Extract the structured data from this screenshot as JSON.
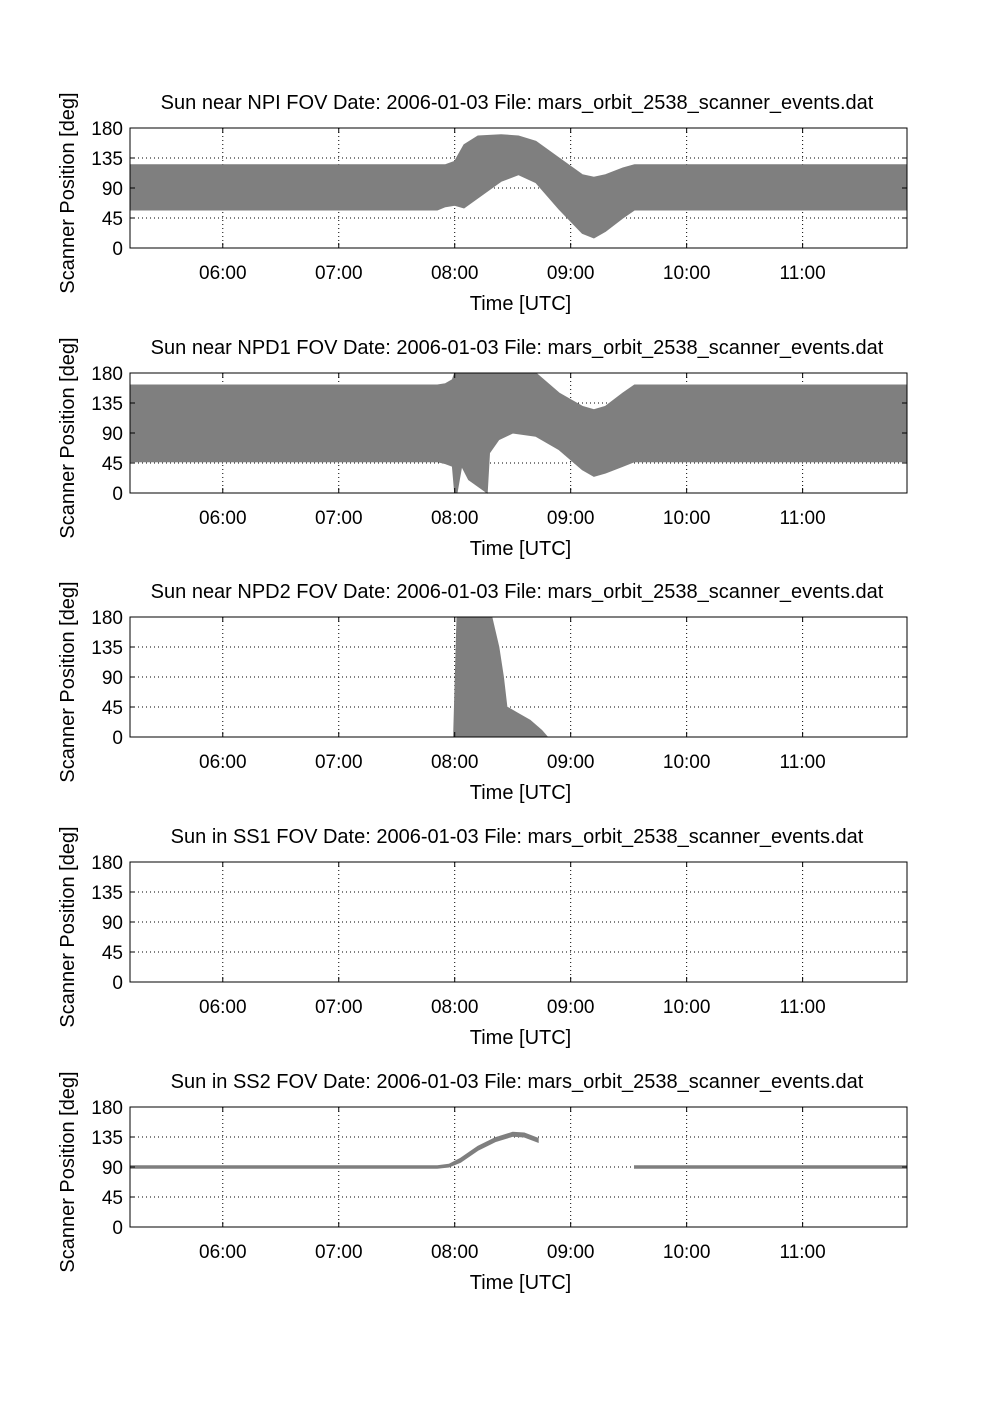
{
  "page": {
    "background": "#ffffff",
    "fill_color": "#7f7f7f",
    "axis_color": "#000000",
    "grid_color": "#000000"
  },
  "chart_data": [
    {
      "type": "area",
      "title": "Sun near NPI FOV    Date: 2006-01-03    File: mars_orbit_2538_scanner_events.dat",
      "xlabel": "Time [UTC]",
      "ylabel": "Scanner Position [deg]",
      "x_unit": "hours UTC",
      "xlim": [
        5.2,
        11.9
      ],
      "ylim": [
        0,
        180
      ],
      "xticks": [
        6,
        7,
        8,
        9,
        10,
        11
      ],
      "xtick_labels": [
        "06:00",
        "07:00",
        "08:00",
        "09:00",
        "10:00",
        "11:00"
      ],
      "yticks": [
        0,
        45,
        90,
        135,
        180
      ],
      "ytick_labels": [
        "0",
        "45",
        "90",
        "135",
        "180"
      ],
      "grid": true,
      "series": [
        {
          "x": [
            5.2,
            7.85,
            7.92,
            8.0,
            8.08,
            8.2,
            8.4,
            8.55,
            8.7,
            8.9,
            9.1,
            9.2,
            9.3,
            9.45,
            9.55,
            11.9
          ],
          "lower": [
            57,
            57,
            62,
            64,
            60,
            75,
            100,
            110,
            98,
            58,
            22,
            15,
            25,
            45,
            57,
            57
          ],
          "upper": [
            125,
            125,
            125,
            130,
            155,
            168,
            170,
            168,
            160,
            135,
            110,
            106,
            110,
            120,
            125,
            125
          ]
        }
      ]
    },
    {
      "type": "area",
      "title": "Sun near NPD1 FOV    Date: 2006-01-03    File: mars_orbit_2538_scanner_events.dat",
      "xlabel": "Time [UTC]",
      "ylabel": "Scanner Position [deg]",
      "x_unit": "hours UTC",
      "xlim": [
        5.2,
        11.9
      ],
      "ylim": [
        0,
        180
      ],
      "xticks": [
        6,
        7,
        8,
        9,
        10,
        11
      ],
      "xtick_labels": [
        "06:00",
        "07:00",
        "08:00",
        "09:00",
        "10:00",
        "11:00"
      ],
      "yticks": [
        0,
        45,
        90,
        135,
        180
      ],
      "ytick_labels": [
        "0",
        "45",
        "90",
        "135",
        "180"
      ],
      "grid": true,
      "series": [
        {
          "x": [
            5.2,
            7.85,
            7.92,
            7.98,
            8.0,
            8.02,
            8.06,
            8.12,
            8.28,
            8.3,
            8.38,
            8.5,
            8.7,
            8.9,
            9.1,
            9.2,
            9.3,
            9.45,
            9.55,
            11.9
          ],
          "lower": [
            47,
            47,
            44,
            40,
            0,
            0,
            40,
            20,
            0,
            60,
            80,
            90,
            85,
            65,
            35,
            25,
            30,
            40,
            47,
            47
          ],
          "upper": [
            162,
            162,
            164,
            170,
            180,
            180,
            180,
            180,
            180,
            180,
            180,
            180,
            180,
            150,
            130,
            125,
            130,
            150,
            162,
            162
          ]
        }
      ]
    },
    {
      "type": "area",
      "title": "Sun near NPD2 FOV    Date: 2006-01-03    File: mars_orbit_2538_scanner_events.dat",
      "xlabel": "Time [UTC]",
      "ylabel": "Scanner Position [deg]",
      "x_unit": "hours UTC",
      "xlim": [
        5.2,
        11.9
      ],
      "ylim": [
        0,
        180
      ],
      "xticks": [
        6,
        7,
        8,
        9,
        10,
        11
      ],
      "xtick_labels": [
        "06:00",
        "07:00",
        "08:00",
        "09:00",
        "10:00",
        "11:00"
      ],
      "yticks": [
        0,
        45,
        90,
        135,
        180
      ],
      "ytick_labels": [
        "0",
        "45",
        "90",
        "135",
        "180"
      ],
      "grid": true,
      "series": [
        {
          "x": [
            7.99,
            8.02,
            8.08,
            8.32,
            8.38,
            8.42,
            8.45,
            8.55,
            8.65,
            8.75,
            8.8
          ],
          "lower": [
            0,
            0,
            0,
            0,
            0,
            0,
            0,
            0,
            0,
            0,
            0
          ],
          "upper": [
            0,
            180,
            180,
            180,
            135,
            90,
            45,
            35,
            25,
            10,
            0
          ]
        }
      ]
    },
    {
      "type": "area",
      "title": "Sun in SS1 FOV    Date: 2006-01-03    File: mars_orbit_2538_scanner_events.dat",
      "xlabel": "Time [UTC]",
      "ylabel": "Scanner Position [deg]",
      "x_unit": "hours UTC",
      "xlim": [
        5.2,
        11.9
      ],
      "ylim": [
        0,
        180
      ],
      "xticks": [
        6,
        7,
        8,
        9,
        10,
        11
      ],
      "xtick_labels": [
        "06:00",
        "07:00",
        "08:00",
        "09:00",
        "10:00",
        "11:00"
      ],
      "yticks": [
        0,
        45,
        90,
        135,
        180
      ],
      "ytick_labels": [
        "0",
        "45",
        "90",
        "135",
        "180"
      ],
      "grid": true,
      "series": []
    },
    {
      "type": "area",
      "title": "Sun in SS2 FOV    Date: 2006-01-03    File: mars_orbit_2538_scanner_events.dat",
      "xlabel": "Time [UTC]",
      "ylabel": "Scanner Position [deg]",
      "x_unit": "hours UTC",
      "xlim": [
        5.2,
        11.9
      ],
      "ylim": [
        0,
        180
      ],
      "xticks": [
        6,
        7,
        8,
        9,
        10,
        11
      ],
      "xtick_labels": [
        "06:00",
        "07:00",
        "08:00",
        "09:00",
        "10:00",
        "11:00"
      ],
      "yticks": [
        0,
        45,
        90,
        135,
        180
      ],
      "ytick_labels": [
        "0",
        "45",
        "90",
        "135",
        "180"
      ],
      "grid": true,
      "series": [
        {
          "x": [
            5.2,
            7.85,
            7.95,
            8.05,
            8.2,
            8.35,
            8.5,
            8.6,
            8.72
          ],
          "lower": [
            88,
            88,
            90,
            97,
            115,
            128,
            136,
            135,
            127
          ],
          "upper": [
            92,
            92,
            94,
            103,
            121,
            134,
            142,
            141,
            133
          ]
        },
        {
          "x": [
            9.55,
            11.9
          ],
          "lower": [
            88,
            88
          ],
          "upper": [
            92,
            92
          ]
        }
      ]
    }
  ]
}
